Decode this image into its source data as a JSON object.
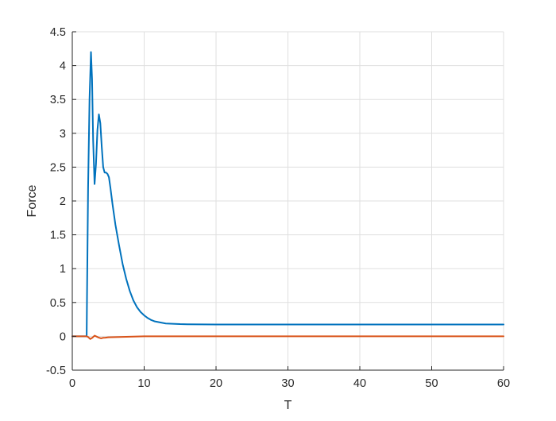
{
  "chart_data": {
    "type": "line",
    "title": "",
    "xlabel": "T",
    "ylabel": "Force",
    "xlim": [
      0,
      60
    ],
    "ylim": [
      -0.5,
      4.5
    ],
    "grid": true,
    "legend": "none",
    "x_ticks": [
      0,
      10,
      20,
      30,
      40,
      50,
      60
    ],
    "y_ticks": [
      -0.5,
      0,
      0.5,
      1,
      1.5,
      2,
      2.5,
      3,
      3.5,
      4,
      4.5
    ],
    "series": [
      {
        "color": "#0072BD",
        "x": [
          0,
          2.0,
          2.05,
          2.2,
          2.4,
          2.6,
          2.75,
          2.9,
          3.1,
          3.3,
          3.5,
          3.7,
          3.9,
          4.1,
          4.3,
          4.5,
          4.7,
          4.9,
          5.1,
          5.3,
          5.6,
          6.0,
          6.5,
          7.0,
          7.5,
          8.0,
          8.5,
          9.0,
          9.5,
          10.0,
          10.5,
          11.0,
          11.5,
          12.0,
          13.0,
          14.0,
          15.0,
          16.0,
          18.0,
          20.0,
          25.0,
          30.0,
          40.0,
          50.0,
          60.0
        ],
        "y": [
          0,
          0,
          0.6,
          2.2,
          3.5,
          4.2,
          3.8,
          2.9,
          2.25,
          2.55,
          3.05,
          3.28,
          3.15,
          2.8,
          2.5,
          2.42,
          2.42,
          2.4,
          2.35,
          2.2,
          1.95,
          1.65,
          1.35,
          1.07,
          0.85,
          0.67,
          0.53,
          0.43,
          0.36,
          0.31,
          0.27,
          0.24,
          0.22,
          0.21,
          0.19,
          0.185,
          0.18,
          0.178,
          0.176,
          0.175,
          0.175,
          0.175,
          0.175,
          0.175,
          0.175
        ]
      },
      {
        "color": "#D95319",
        "x": [
          0,
          2.0,
          2.2,
          2.5,
          2.8,
          3.1,
          3.4,
          3.7,
          4.0,
          4.3,
          4.6,
          5.0,
          5.5,
          6.5,
          8.0,
          10.0,
          15.0,
          20.0,
          30.0,
          40.0,
          50.0,
          60.0
        ],
        "y": [
          0,
          0,
          -0.01,
          -0.04,
          -0.02,
          0.01,
          -0.005,
          -0.02,
          -0.03,
          -0.022,
          -0.02,
          -0.015,
          -0.013,
          -0.01,
          -0.005,
          0,
          0,
          0,
          0,
          0,
          0,
          0
        ]
      }
    ]
  }
}
